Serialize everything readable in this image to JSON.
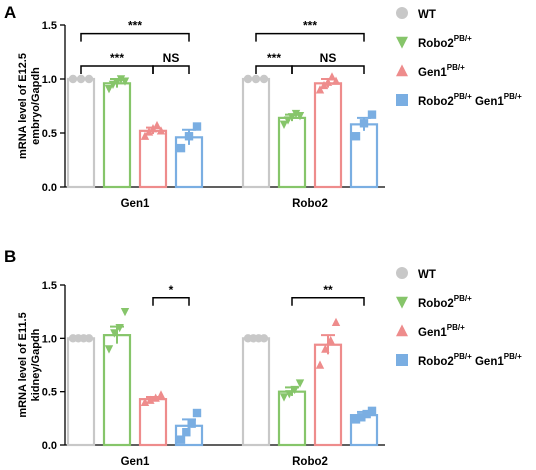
{
  "colors": {
    "WT": "#c8c8c8",
    "Robo2": "#86c56a",
    "Gen1": "#ee8c8c",
    "Both": "#7aaee2"
  },
  "legend": [
    {
      "key": "WT",
      "text": "WT",
      "sup": "",
      "text2": "",
      "sup2": "",
      "marker": "circle"
    },
    {
      "key": "Robo2",
      "text": "Robo2",
      "sup": "PB/+",
      "text2": "",
      "sup2": "",
      "marker": "tri-down"
    },
    {
      "key": "Gen1",
      "text": "Gen1",
      "sup": "PB/+",
      "text2": "",
      "sup2": "",
      "marker": "tri-up"
    },
    {
      "key": "Both",
      "text": "Robo2",
      "sup": "PB/+",
      "text2": " Gen1",
      "sup2": "PB/+",
      "marker": "square"
    }
  ],
  "chart_data": [
    {
      "type": "bar",
      "panel": "A",
      "ylabel_line1": "mRNA level of E12.5",
      "ylabel_line2": "embryo/Gapdh",
      "ylim": [
        0,
        1.5
      ],
      "yticks": [
        "0.0",
        "0.5",
        "1.0",
        "1.5"
      ],
      "categories": [
        "Gen1",
        "Robo2"
      ],
      "series": [
        {
          "key": "WT",
          "name": "WT",
          "values": [
            1.0,
            1.0
          ],
          "errors": [
            0,
            0
          ],
          "points": [
            [
              1.0,
              1.0,
              1.0
            ],
            [
              1.0,
              1.0,
              1.0
            ]
          ]
        },
        {
          "key": "Robo2",
          "name": "Robo2PB/+",
          "values": [
            0.96,
            0.64
          ],
          "errors": [
            0.04,
            0.03
          ],
          "points": [
            [
              0.91,
              0.95,
              0.97,
              1.0,
              0.98
            ],
            [
              0.58,
              0.62,
              0.65,
              0.68,
              0.66
            ]
          ]
        },
        {
          "key": "Gen1",
          "name": "Gen1PB/+",
          "values": [
            0.52,
            0.96
          ],
          "errors": [
            0.03,
            0.04
          ],
          "points": [
            [
              0.47,
              0.51,
              0.54,
              0.57,
              0.52
            ],
            [
              0.9,
              0.94,
              0.97,
              1.02,
              0.98
            ]
          ]
        },
        {
          "key": "Both",
          "name": "Robo2PB/+ Gen1PB/+",
          "values": [
            0.46,
            0.58
          ],
          "errors": [
            0.07,
            0.06
          ],
          "points": [
            [
              0.36,
              0.47,
              0.56
            ],
            [
              0.47,
              0.59,
              0.67
            ]
          ]
        }
      ],
      "significance": [
        {
          "group": 0,
          "from": 0,
          "to": 3,
          "level": 1.42,
          "label": "***"
        },
        {
          "group": 0,
          "from": 0,
          "to": 2,
          "level": 1.12,
          "label": "***"
        },
        {
          "group": 0,
          "from": 2,
          "to": 3,
          "level": 1.12,
          "label": "NS"
        },
        {
          "group": 1,
          "from": 0,
          "to": 3,
          "level": 1.42,
          "label": "***"
        },
        {
          "group": 1,
          "from": 0,
          "to": 1,
          "level": 1.12,
          "label": "***"
        },
        {
          "group": 1,
          "from": 1,
          "to": 3,
          "level": 1.12,
          "label": "NS"
        }
      ]
    },
    {
      "type": "bar",
      "panel": "B",
      "ylabel_line1": "mRNA level of E11.5",
      "ylabel_line2": "kidney/Gapdh",
      "ylim": [
        0,
        1.5
      ],
      "yticks": [
        "0.0",
        "0.5",
        "1.0",
        "1.5"
      ],
      "categories": [
        "Gen1",
        "Robo2"
      ],
      "series": [
        {
          "key": "WT",
          "name": "WT",
          "values": [
            1.0,
            1.0
          ],
          "errors": [
            0,
            0
          ],
          "points": [
            [
              1.0,
              1.0,
              1.0,
              1.0
            ],
            [
              1.0,
              1.0,
              1.0,
              1.0
            ]
          ]
        },
        {
          "key": "Robo2",
          "name": "Robo2PB/+",
          "values": [
            1.03,
            0.5
          ],
          "errors": [
            0.08,
            0.04
          ],
          "points": [
            [
              0.9,
              1.05,
              1.1,
              1.25
            ],
            [
              0.45,
              0.48,
              0.52,
              0.58
            ]
          ]
        },
        {
          "key": "Gen1",
          "name": "Gen1PB/+",
          "values": [
            0.43,
            0.94
          ],
          "errors": [
            0.02,
            0.09
          ],
          "points": [
            [
              0.4,
              0.42,
              0.44,
              0.47
            ],
            [
              0.75,
              0.9,
              0.98,
              1.15
            ]
          ]
        },
        {
          "key": "Both",
          "name": "Robo2PB/+ Gen1PB/+",
          "values": [
            0.18,
            0.28
          ],
          "errors": [
            0.06,
            0.03
          ],
          "points": [
            [
              0.05,
              0.12,
              0.2,
              0.3
            ],
            [
              0.24,
              0.26,
              0.29,
              0.32
            ]
          ]
        }
      ],
      "significance": [
        {
          "group": 0,
          "from": 2,
          "to": 3,
          "level": 1.38,
          "label": "*"
        },
        {
          "group": 1,
          "from": 1,
          "to": 3,
          "level": 1.38,
          "label": "**"
        }
      ]
    }
  ]
}
